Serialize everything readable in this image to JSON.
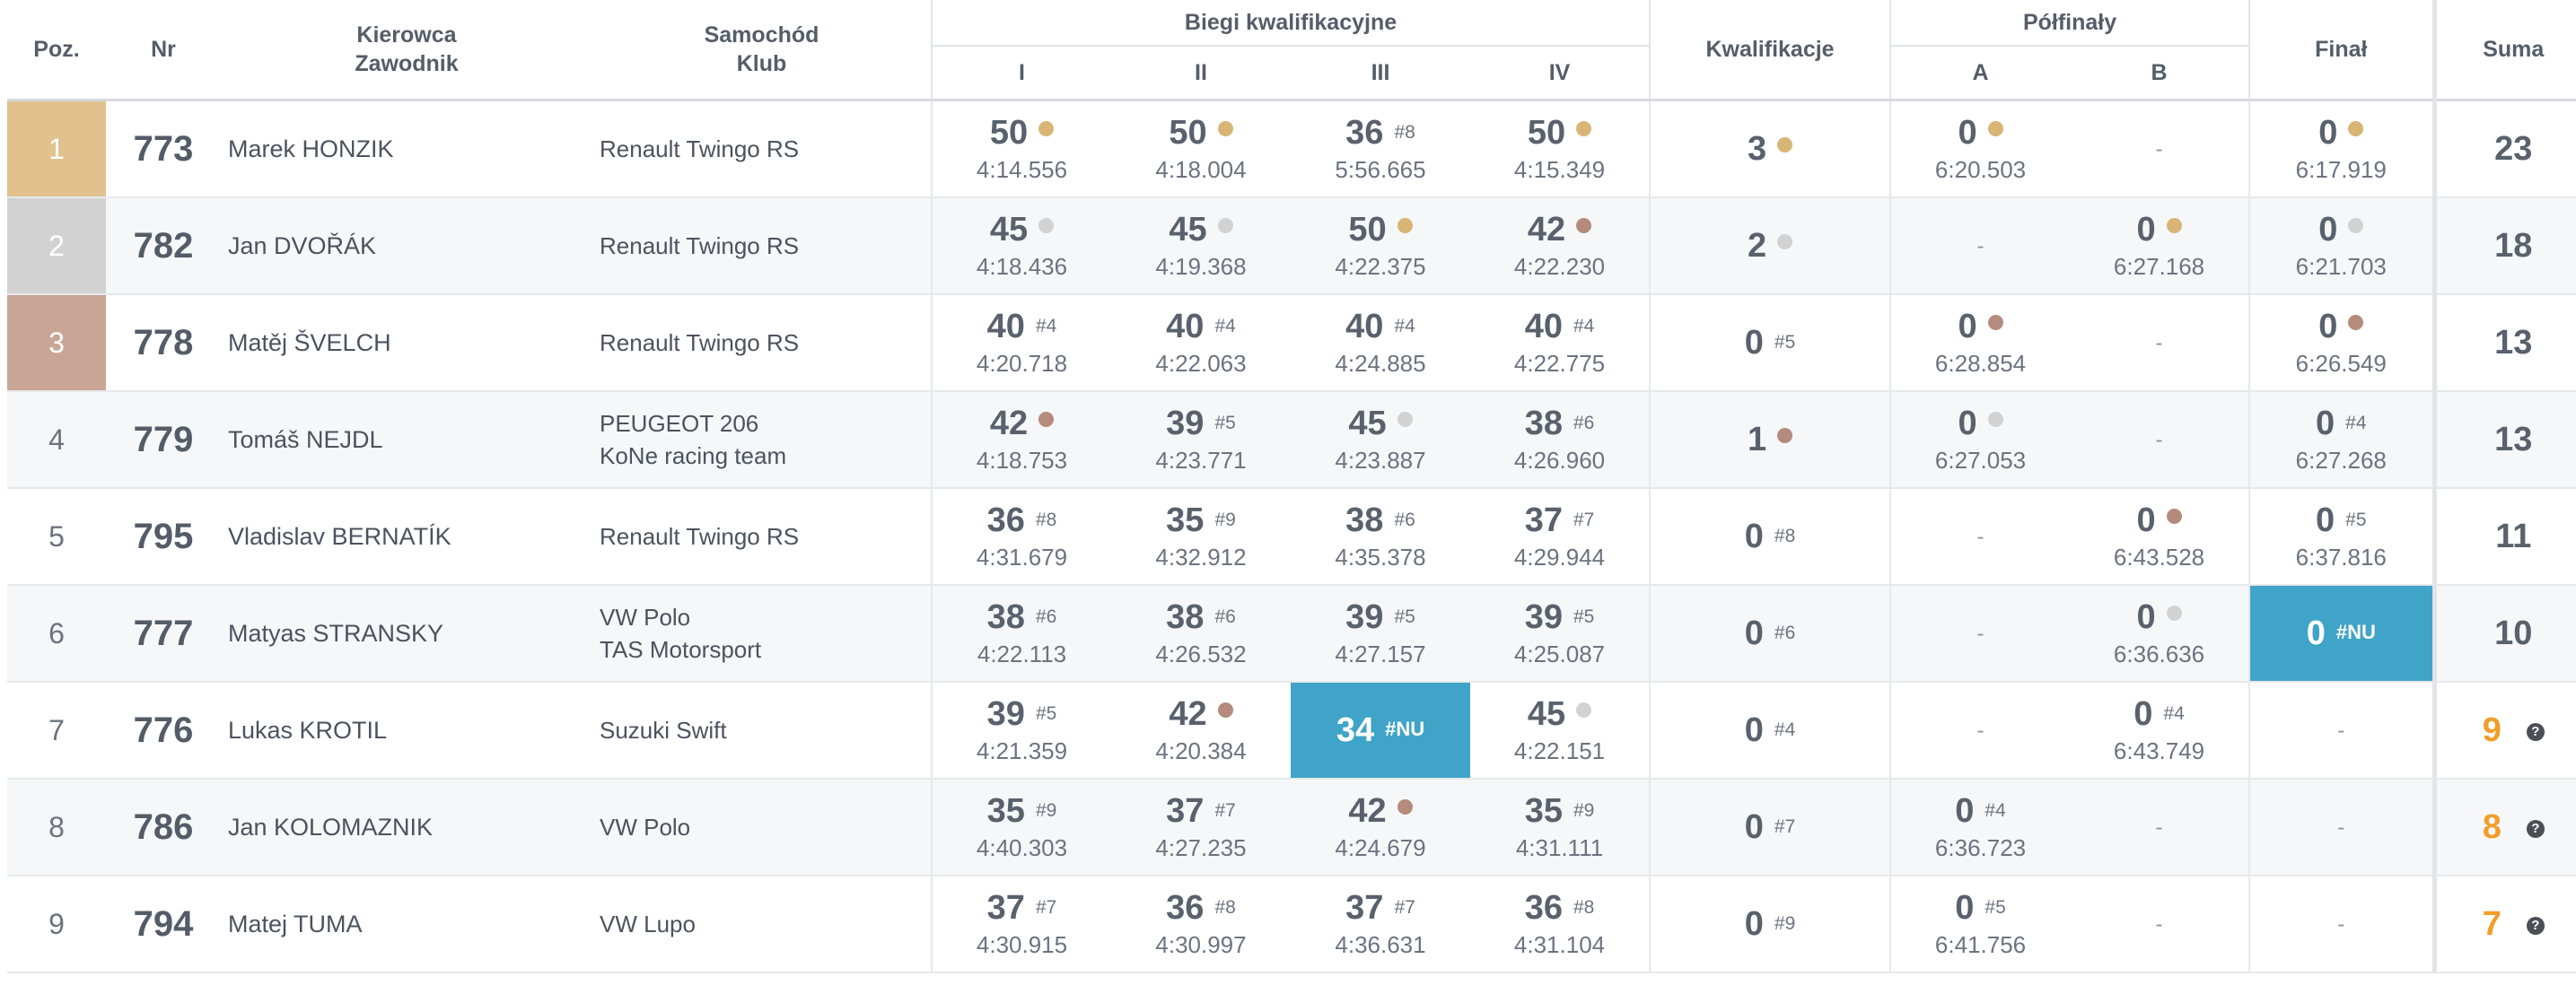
{
  "headers": {
    "pos": "Poz.",
    "nr": "Nr",
    "driver_l1": "Kierowca",
    "driver_l2": "Zawodnik",
    "car_l1": "Samochód",
    "car_l2": "Klub",
    "heats": "Biegi kwalifikacyjne",
    "heat_cols": [
      "I",
      "II",
      "III",
      "IV"
    ],
    "qual": "Kwalifikacje",
    "semis": "Półfinały",
    "semi_cols": [
      "A",
      "B"
    ],
    "final": "Finał",
    "sum": "Suma"
  },
  "colors": {
    "gold": "#e1c28f",
    "silver": "#d2d2d2",
    "bronze": "#c9a596",
    "highlight": "#3fa4c7",
    "orange": "#f29d2a"
  },
  "icons": {
    "help": "question-mark-circle-icon"
  },
  "rows": [
    {
      "pos": "1",
      "pos_medal": "gold",
      "nr": "773",
      "driver": "Marek HONZIK",
      "car": "Renault Twingo RS",
      "club": "",
      "heats": [
        {
          "pts": "50",
          "medal": "gold",
          "time": "4:14.556"
        },
        {
          "pts": "50",
          "medal": "gold",
          "time": "4:18.004"
        },
        {
          "pts": "36",
          "rank": "#8",
          "time": "5:56.665"
        },
        {
          "pts": "50",
          "medal": "gold",
          "time": "4:15.349"
        }
      ],
      "qual": {
        "pts": "3",
        "medal": "gold"
      },
      "semiA": {
        "pts": "0",
        "medal": "gold",
        "time": "6:20.503"
      },
      "semiB": {
        "dash": "-"
      },
      "final": {
        "pts": "0",
        "medal": "gold",
        "time": "6:17.919"
      },
      "sum": "23"
    },
    {
      "pos": "2",
      "pos_medal": "silver",
      "nr": "782",
      "driver": "Jan DVOŘÁK",
      "car": "Renault Twingo RS",
      "club": "",
      "heats": [
        {
          "pts": "45",
          "medal": "silver",
          "time": "4:18.436"
        },
        {
          "pts": "45",
          "medal": "silver",
          "time": "4:19.368"
        },
        {
          "pts": "50",
          "medal": "gold",
          "time": "4:22.375"
        },
        {
          "pts": "42",
          "medal": "bronze",
          "time": "4:22.230"
        }
      ],
      "qual": {
        "pts": "2",
        "medal": "silver"
      },
      "semiA": {
        "dash": "-"
      },
      "semiB": {
        "pts": "0",
        "medal": "gold",
        "time": "6:27.168"
      },
      "final": {
        "pts": "0",
        "medal": "silver",
        "time": "6:21.703"
      },
      "sum": "18"
    },
    {
      "pos": "3",
      "pos_medal": "bronze",
      "nr": "778",
      "driver": "Matěj ŠVELCH",
      "car": "Renault Twingo RS",
      "club": "",
      "heats": [
        {
          "pts": "40",
          "rank": "#4",
          "time": "4:20.718"
        },
        {
          "pts": "40",
          "rank": "#4",
          "time": "4:22.063"
        },
        {
          "pts": "40",
          "rank": "#4",
          "time": "4:24.885"
        },
        {
          "pts": "40",
          "rank": "#4",
          "time": "4:22.775"
        }
      ],
      "qual": {
        "pts": "0",
        "rank": "#5"
      },
      "semiA": {
        "pts": "0",
        "medal": "bronze",
        "time": "6:28.854"
      },
      "semiB": {
        "dash": "-"
      },
      "final": {
        "pts": "0",
        "medal": "bronze",
        "time": "6:26.549"
      },
      "sum": "13"
    },
    {
      "pos": "4",
      "nr": "779",
      "driver": "Tomáš NEJDL",
      "car": "PEUGEOT 206",
      "club": "KoNe racing team",
      "heats": [
        {
          "pts": "42",
          "medal": "bronze",
          "time": "4:18.753"
        },
        {
          "pts": "39",
          "rank": "#5",
          "time": "4:23.771"
        },
        {
          "pts": "45",
          "medal": "silver",
          "time": "4:23.887"
        },
        {
          "pts": "38",
          "rank": "#6",
          "time": "4:26.960"
        }
      ],
      "qual": {
        "pts": "1",
        "medal": "bronze"
      },
      "semiA": {
        "pts": "0",
        "medal": "silver",
        "time": "6:27.053"
      },
      "semiB": {
        "dash": "-"
      },
      "final": {
        "pts": "0",
        "rank": "#4",
        "time": "6:27.268"
      },
      "sum": "13"
    },
    {
      "pos": "5",
      "nr": "795",
      "driver": "Vladislav BERNATÍK",
      "car": "Renault Twingo RS",
      "club": "",
      "heats": [
        {
          "pts": "36",
          "rank": "#8",
          "time": "4:31.679"
        },
        {
          "pts": "35",
          "rank": "#9",
          "time": "4:32.912"
        },
        {
          "pts": "38",
          "rank": "#6",
          "time": "4:35.378"
        },
        {
          "pts": "37",
          "rank": "#7",
          "time": "4:29.944"
        }
      ],
      "qual": {
        "pts": "0",
        "rank": "#8"
      },
      "semiA": {
        "dash": "-"
      },
      "semiB": {
        "pts": "0",
        "medal": "bronze",
        "time": "6:43.528"
      },
      "final": {
        "pts": "0",
        "rank": "#5",
        "time": "6:37.816"
      },
      "sum": "11"
    },
    {
      "pos": "6",
      "nr": "777",
      "driver": "Matyas STRANSKY",
      "car": "VW Polo",
      "club": "TAS Motorsport",
      "heats": [
        {
          "pts": "38",
          "rank": "#6",
          "time": "4:22.113"
        },
        {
          "pts": "38",
          "rank": "#6",
          "time": "4:26.532"
        },
        {
          "pts": "39",
          "rank": "#5",
          "time": "4:27.157"
        },
        {
          "pts": "39",
          "rank": "#5",
          "time": "4:25.087"
        }
      ],
      "qual": {
        "pts": "0",
        "rank": "#6"
      },
      "semiA": {
        "dash": "-"
      },
      "semiB": {
        "pts": "0",
        "medal": "silver",
        "time": "6:36.636"
      },
      "final": {
        "pts": "0",
        "rank": "#NU",
        "highlight": true
      },
      "sum": "10"
    },
    {
      "pos": "7",
      "nr": "776",
      "driver": "Lukas KROTIL",
      "car": "Suzuki Swift",
      "club": "",
      "heats": [
        {
          "pts": "39",
          "rank": "#5",
          "time": "4:21.359"
        },
        {
          "pts": "42",
          "medal": "bronze",
          "time": "4:20.384"
        },
        {
          "pts": "34",
          "rank": "#NU",
          "highlight": true
        },
        {
          "pts": "45",
          "medal": "silver",
          "time": "4:22.151"
        }
      ],
      "qual": {
        "pts": "0",
        "rank": "#4"
      },
      "semiA": {
        "dash": "-"
      },
      "semiB": {
        "pts": "0",
        "rank": "#4",
        "time": "6:43.749"
      },
      "final": {
        "dash": "-"
      },
      "sum": "9",
      "sum_orange": true,
      "sum_help": true
    },
    {
      "pos": "8",
      "nr": "786",
      "driver": "Jan KOLOMAZNIK",
      "car": "VW Polo",
      "club": "",
      "heats": [
        {
          "pts": "35",
          "rank": "#9",
          "time": "4:40.303"
        },
        {
          "pts": "37",
          "rank": "#7",
          "time": "4:27.235"
        },
        {
          "pts": "42",
          "medal": "bronze",
          "time": "4:24.679"
        },
        {
          "pts": "35",
          "rank": "#9",
          "time": "4:31.111"
        }
      ],
      "qual": {
        "pts": "0",
        "rank": "#7"
      },
      "semiA": {
        "pts": "0",
        "rank": "#4",
        "time": "6:36.723"
      },
      "semiB": {
        "dash": "-"
      },
      "final": {
        "dash": "-"
      },
      "sum": "8",
      "sum_orange": true,
      "sum_help": true
    },
    {
      "pos": "9",
      "nr": "794",
      "driver": "Matej TUMA",
      "car": "VW Lupo",
      "club": "",
      "heats": [
        {
          "pts": "37",
          "rank": "#7",
          "time": "4:30.915"
        },
        {
          "pts": "36",
          "rank": "#8",
          "time": "4:30.997"
        },
        {
          "pts": "37",
          "rank": "#7",
          "time": "4:36.631"
        },
        {
          "pts": "36",
          "rank": "#8",
          "time": "4:31.104"
        }
      ],
      "qual": {
        "pts": "0",
        "rank": "#9"
      },
      "semiA": {
        "pts": "0",
        "rank": "#5",
        "time": "6:41.756"
      },
      "semiB": {
        "dash": "-"
      },
      "final": {
        "dash": "-"
      },
      "sum": "7",
      "sum_orange": true,
      "sum_help": true
    }
  ]
}
